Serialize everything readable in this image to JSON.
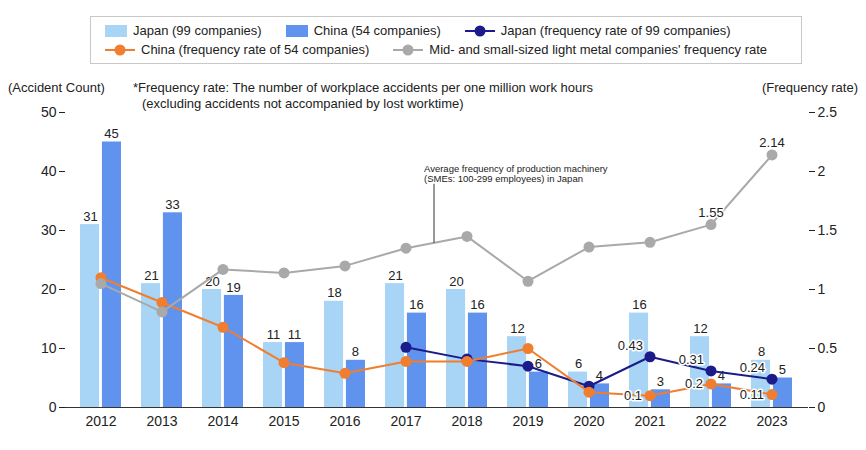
{
  "chart_data": {
    "type": "bar",
    "categories": [
      "2012",
      "2013",
      "2014",
      "2015",
      "2016",
      "2017",
      "2018",
      "2019",
      "2020",
      "2021",
      "2022",
      "2023"
    ],
    "ylabel": "(Accident Count)",
    "y2label": "(Frequency rate)",
    "ylim": [
      0,
      50
    ],
    "yticks": [
      0,
      10,
      20,
      30,
      40,
      50
    ],
    "y2lim": [
      0,
      2.5
    ],
    "y2ticks": [
      0,
      0.5,
      1,
      1.5,
      2,
      2.5
    ],
    "grid": false,
    "legend": "top",
    "data_labels": true,
    "footnote": [
      "*Frequency rate: The number of workplace accidents per one million work hours",
      "(excluding accidents not accompanied by lost worktime)"
    ],
    "annotations": [
      {
        "text": [
          "Average frequency of production machinery",
          "(SMEs: 100-299 employees) in Japan"
        ],
        "series": "Mid- and small-sized light metal companies' frequency rate"
      }
    ],
    "series": [
      {
        "name": "Japan (99 companies)",
        "type": "bar",
        "color": "#a8d4f6",
        "values": [
          31,
          21,
          20,
          11,
          18,
          21,
          20,
          12,
          6,
          16,
          12,
          8
        ]
      },
      {
        "name": "China (54 companies)",
        "type": "bar",
        "color": "#5f93ee",
        "values": [
          45,
          33,
          19,
          11,
          8,
          16,
          16,
          6,
          4,
          3,
          4,
          5
        ]
      },
      {
        "name": "Japan (frequency rate of 99 companies)",
        "type": "line",
        "axis": "y2",
        "marker": "circle",
        "color": "#1b1b8a",
        "values": [
          null,
          null,
          null,
          null,
          null,
          0.51,
          0.41,
          0.35,
          0.18,
          0.43,
          0.31,
          0.24
        ],
        "value_labels": [
          null,
          null,
          null,
          null,
          null,
          null,
          null,
          null,
          null,
          "0.43",
          "0.31",
          "0.24"
        ]
      },
      {
        "name": "China (frequency rate of 54 companies)",
        "type": "line",
        "axis": "y2",
        "marker": "circle",
        "color": "#f07e2e",
        "values": [
          1.1,
          0.89,
          0.68,
          0.38,
          0.29,
          0.39,
          0.39,
          0.5,
          0.13,
          0.1,
          0.2,
          0.11
        ],
        "value_labels": [
          null,
          null,
          null,
          null,
          null,
          null,
          null,
          null,
          null,
          "0.1",
          "0.2",
          "0.11"
        ]
      },
      {
        "name": "Mid- and small-sized light metal companies' frequency rate",
        "type": "line",
        "axis": "y2",
        "marker": "circle",
        "color": "#a9a9a9",
        "values": [
          1.05,
          0.81,
          1.17,
          1.14,
          1.2,
          1.35,
          1.45,
          1.07,
          1.36,
          1.4,
          1.55,
          2.14
        ],
        "value_labels": [
          null,
          null,
          null,
          null,
          null,
          null,
          null,
          null,
          null,
          null,
          "1.55",
          "2.14"
        ]
      }
    ]
  }
}
